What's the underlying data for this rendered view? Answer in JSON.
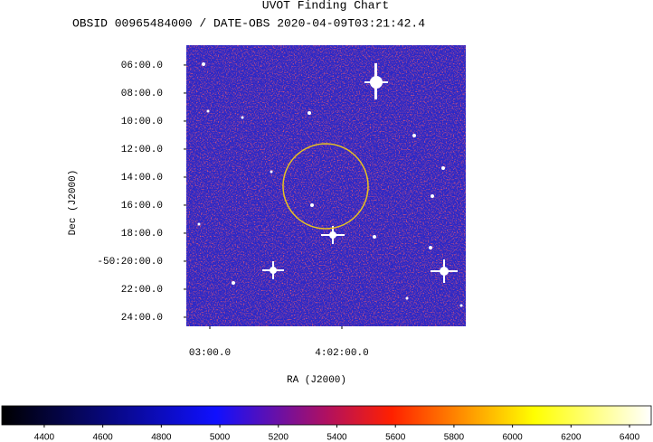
{
  "chart_data": {
    "type": "image",
    "title": "UVOT Finding Chart",
    "subtitle": "OBSID 00965484000 / DATE-OBS 2020-04-09T03:21:42.4",
    "xlabel": "RA (J2000)",
    "ylabel": "Dec (J2000)",
    "xlim": [
      4.052968,
      4.017694
    ],
    "xticks": [
      {
        "value": 4.05,
        "label": "03:00.0"
      },
      {
        "value": 4.033333,
        "label": "4:02:00.0"
      }
    ],
    "ylim": [
      -50.4108,
      -50.0764
    ],
    "yticks": [
      {
        "value": -50.1,
        "label": "06:00.0"
      },
      {
        "value": -50.133333,
        "label": "08:00.0"
      },
      {
        "value": -50.166667,
        "label": "10:00.0"
      },
      {
        "value": -50.2,
        "label": "12:00.0"
      },
      {
        "value": -50.233333,
        "label": "14:00.0"
      },
      {
        "value": -50.266667,
        "label": "16:00.0"
      },
      {
        "value": -50.3,
        "label": "18:00.0"
      },
      {
        "value": -50.333333,
        "label": "-50:20:00.0"
      },
      {
        "value": -50.366667,
        "label": "22:00.0"
      },
      {
        "value": -50.4,
        "label": "24:00.0"
      }
    ],
    "clim": [
      4255,
      6474
    ],
    "cticks": [
      4400,
      4600,
      4800,
      5000,
      5200,
      5400,
      5600,
      5800,
      6000,
      6200,
      6400
    ]
  }
}
